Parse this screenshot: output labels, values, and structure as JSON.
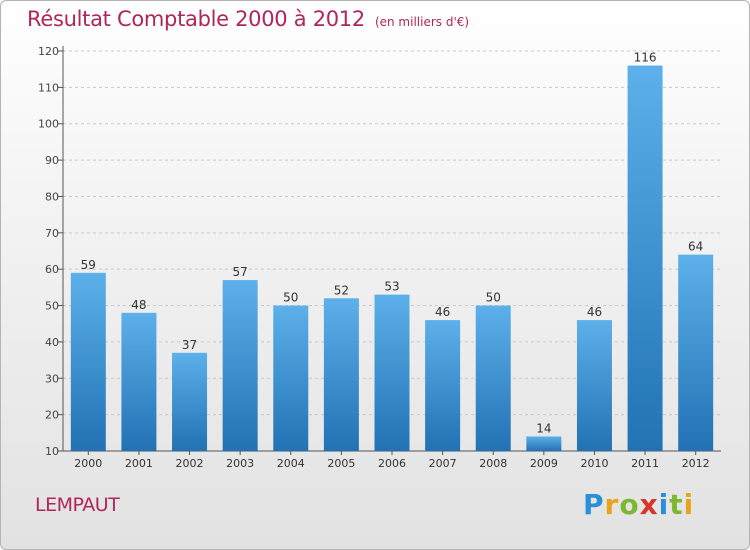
{
  "chart_data": {
    "type": "bar",
    "title": "Résultat Comptable 2000 à 2012",
    "subtitle": "(en milliers d'€)",
    "categories": [
      "2000",
      "2001",
      "2002",
      "2003",
      "2004",
      "2005",
      "2006",
      "2007",
      "2008",
      "2009",
      "2010",
      "2011",
      "2012"
    ],
    "values": [
      59,
      48,
      37,
      57,
      50,
      52,
      53,
      46,
      50,
      14,
      46,
      116,
      64
    ],
    "ylim": [
      10,
      120
    ],
    "yticks": [
      10,
      20,
      30,
      40,
      50,
      60,
      70,
      80,
      90,
      100,
      110,
      120
    ],
    "grid": true,
    "bar_color": "#3a93d6"
  },
  "commune": "LEMPAUT",
  "logo": {
    "letters": [
      "P",
      "r",
      "o",
      "x",
      "i",
      "t",
      "i"
    ],
    "colors": [
      "#2a8fd6",
      "#e8a51c",
      "#7cb82f",
      "#d8342b",
      "#2a8fd6",
      "#7cb82f",
      "#e8a51c"
    ]
  }
}
